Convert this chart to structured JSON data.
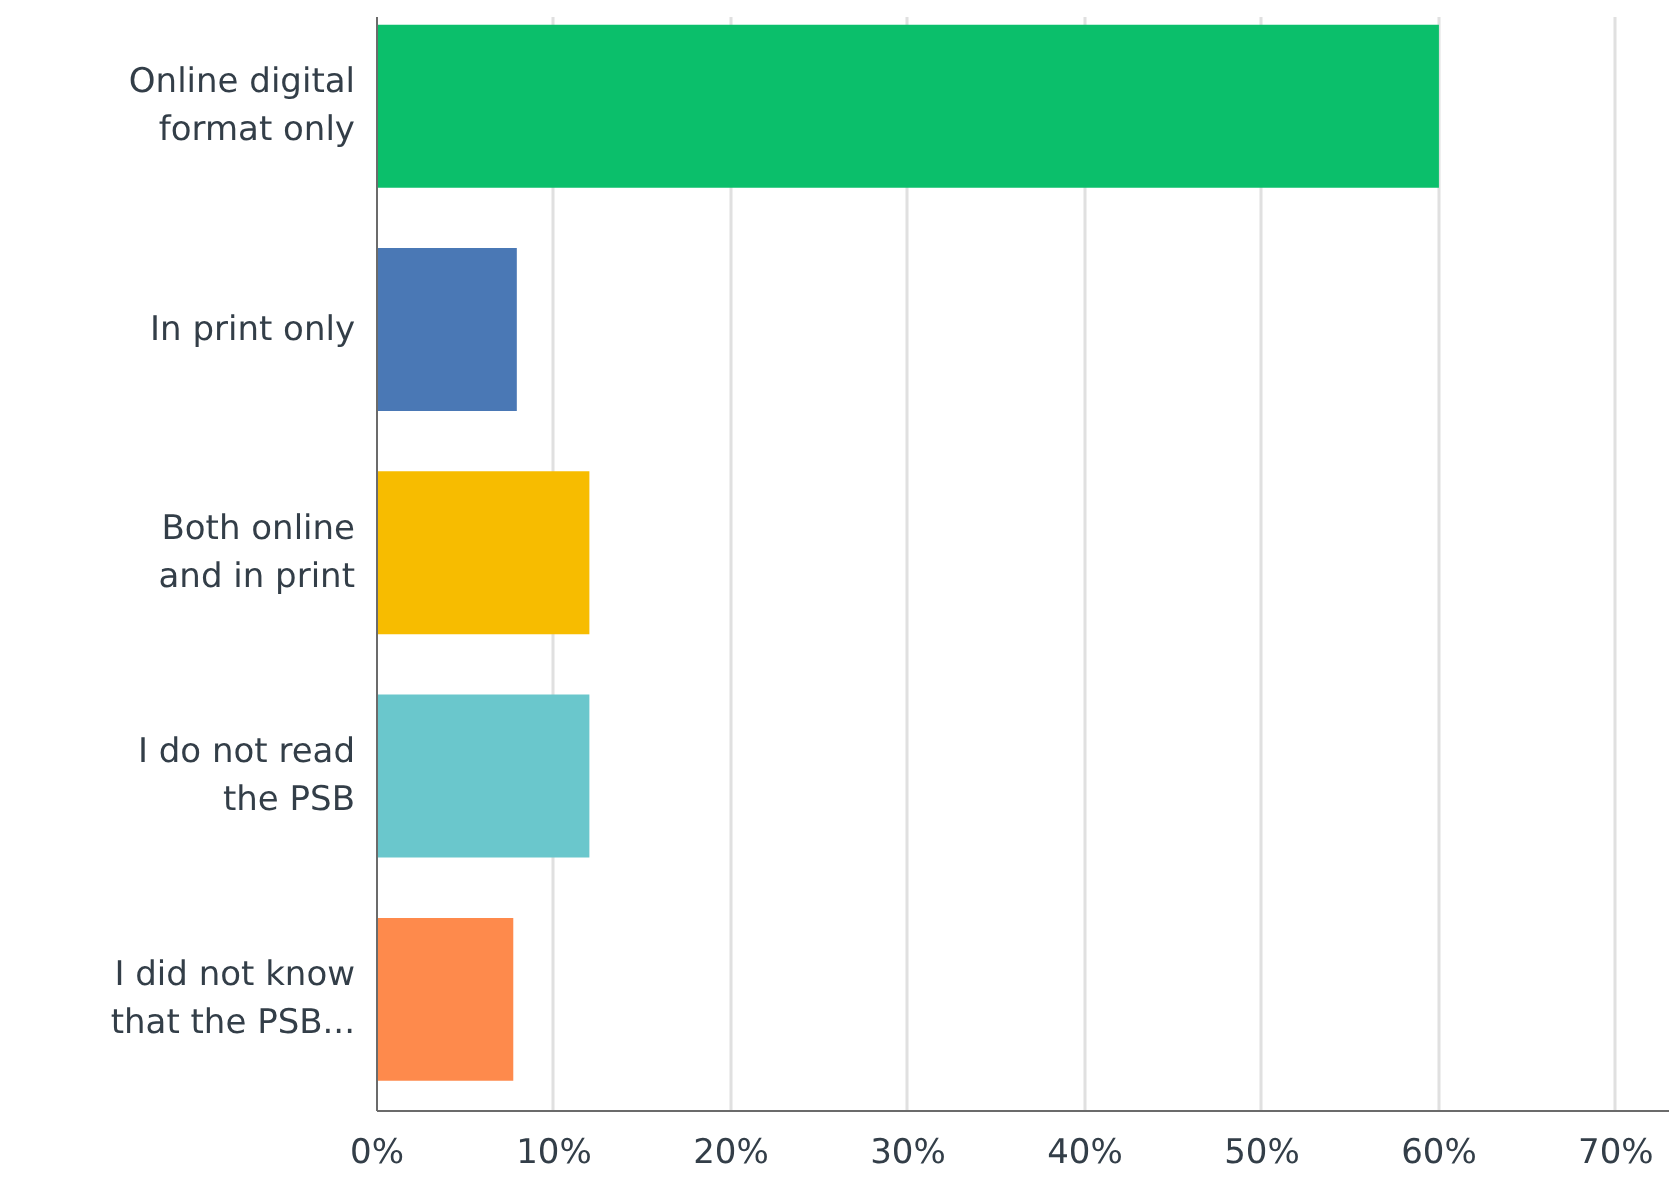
{
  "chart_data": {
    "type": "bar",
    "orientation": "horizontal",
    "categories": [
      "Online digital\nformat only",
      "In print only",
      "Both online\nand in print",
      "I do not read\nthe PSB",
      "I did not know\nthat the PSB..."
    ],
    "values": [
      60,
      7.9,
      12,
      12,
      7.7
    ],
    "colors": [
      "#0bbf6b",
      "#4a78b5",
      "#f7bc00",
      "#6ac7cc",
      "#fe8a4c"
    ],
    "xlim": [
      0,
      73
    ],
    "xticks": [
      {
        "value": 0,
        "label": "0%"
      },
      {
        "value": 10,
        "label": "10%"
      },
      {
        "value": 20,
        "label": "20%"
      },
      {
        "value": 30,
        "label": "30%"
      },
      {
        "value": 40,
        "label": "40%"
      },
      {
        "value": 50,
        "label": "50%"
      },
      {
        "value": 60,
        "label": "60%"
      },
      {
        "value": 70,
        "label": "70%"
      }
    ],
    "grid": "x"
  }
}
